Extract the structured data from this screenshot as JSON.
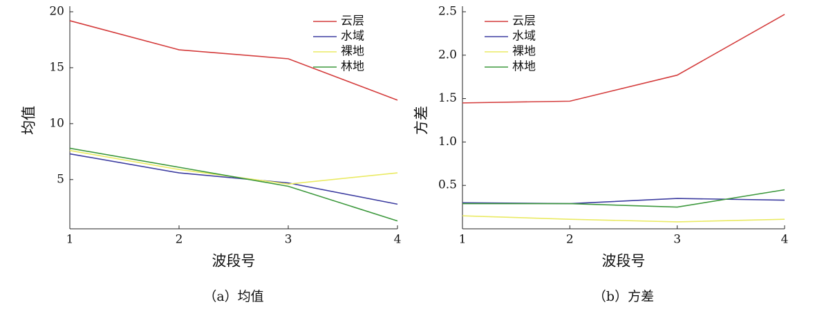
{
  "chart_data": [
    {
      "type": "line",
      "caption": "（a）均值",
      "xlabel": "波段号",
      "ylabel": "均值",
      "x": [
        1,
        2,
        3,
        4
      ],
      "xlim": [
        1,
        4
      ],
      "xticks": [
        1,
        2,
        3,
        4
      ],
      "ylim": [
        0.6,
        20
      ],
      "yticks": [
        5,
        10,
        15,
        20
      ],
      "legend": "upper right",
      "series": [
        {
          "name": "云层",
          "color": "#d43c3c",
          "values": [
            19.2,
            16.6,
            15.8,
            12.1
          ]
        },
        {
          "name": "水域",
          "color": "#3c3ca0",
          "values": [
            7.3,
            5.6,
            4.7,
            2.8
          ]
        },
        {
          "name": "裸地",
          "color": "#eaea62",
          "values": [
            7.6,
            5.9,
            4.6,
            5.6
          ]
        },
        {
          "name": "林地",
          "color": "#3c983c",
          "values": [
            7.8,
            6.1,
            4.4,
            1.3
          ]
        }
      ]
    },
    {
      "type": "line",
      "caption": "（b）方差",
      "xlabel": "波段号",
      "ylabel": "方差",
      "x": [
        1,
        2,
        3,
        4
      ],
      "xlim": [
        1,
        4
      ],
      "xticks": [
        1,
        2,
        3,
        4
      ],
      "ylim": [
        0,
        2.5
      ],
      "yticks": [
        {
          "value": 0.5,
          "label": "0.5"
        },
        {
          "value": 1,
          "label": "1.0"
        },
        {
          "value": 1.5,
          "label": "1.5"
        },
        {
          "value": 2,
          "label": "2.0"
        },
        {
          "value": 2.5,
          "label": "2.5"
        }
      ],
      "legend": "upper left",
      "series": [
        {
          "name": "云层",
          "color": "#d43c3c",
          "values": [
            1.45,
            1.47,
            1.77,
            2.47
          ]
        },
        {
          "name": "水域",
          "color": "#3c3ca0",
          "values": [
            0.3,
            0.29,
            0.35,
            0.33
          ]
        },
        {
          "name": "裸地",
          "color": "#eaea62",
          "values": [
            0.15,
            0.11,
            0.08,
            0.11
          ]
        },
        {
          "name": "林地",
          "color": "#3c983c",
          "values": [
            0.29,
            0.29,
            0.25,
            0.45
          ]
        }
      ]
    }
  ]
}
